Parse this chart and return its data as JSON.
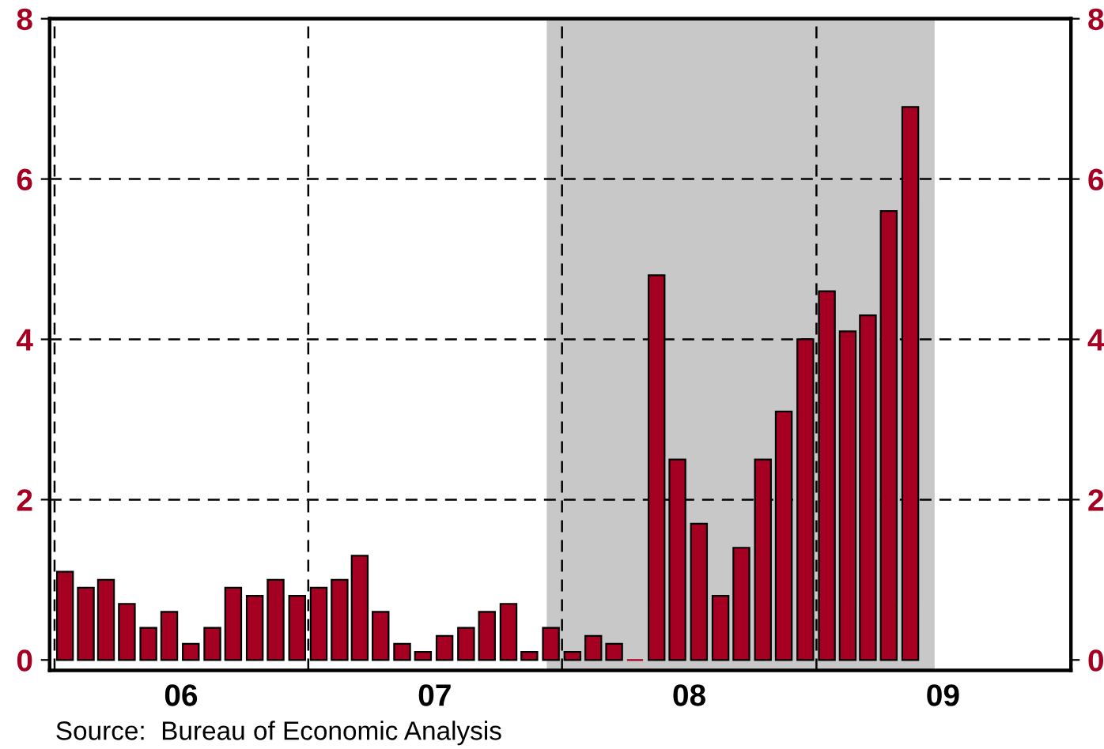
{
  "chart_data": {
    "type": "bar",
    "x": [
      "2006-01-16",
      "2006-02-15",
      "2006-03-16",
      "2006-04-15",
      "2006-05-16",
      "2006-06-15",
      "2006-07-16",
      "2006-08-16",
      "2006-09-15",
      "2006-10-16",
      "2006-11-15",
      "2006-12-16",
      "2007-01-16",
      "2007-02-15",
      "2007-03-16",
      "2007-04-15",
      "2007-05-16",
      "2007-06-15",
      "2007-07-16",
      "2007-08-16",
      "2007-09-15",
      "2007-10-16",
      "2007-11-15",
      "2007-12-16",
      "2008-01-16",
      "2008-02-15",
      "2008-03-16",
      "2008-04-15",
      "2008-05-16",
      "2008-06-15",
      "2008-07-16",
      "2008-08-16",
      "2008-09-15",
      "2008-10-16",
      "2008-11-15",
      "2008-12-16",
      "2009-01-16",
      "2009-02-15",
      "2009-03-16",
      "2009-04-15",
      "2009-05-16"
    ],
    "series": [
      {
        "color": "#a50021",
        "values": [
          1.1,
          0.9,
          1.0,
          0.7,
          0.4,
          0.6,
          0.2,
          0.4,
          0.9,
          0.8,
          1.0,
          0.8,
          0.9,
          1.0,
          1.3,
          0.6,
          0.2,
          0.1,
          0.3,
          0.4,
          0.6,
          0.7,
          0.1,
          0.4,
          0.1,
          0.3,
          0.2,
          0.0,
          4.8,
          2.5,
          1.7,
          0.8,
          1.4,
          2.5,
          3.1,
          4.0,
          4.6,
          4.1,
          4.3,
          5.6,
          6.9
        ]
      }
    ],
    "xlim": [
      "2005-12-25",
      "2010-01-02"
    ],
    "xticks": [
      {
        "value": "2006-01-01",
        "label": null
      },
      {
        "value": "2006-07-02",
        "label": "06"
      },
      {
        "value": "2007-01-01",
        "label": null
      },
      {
        "value": "2007-07-02",
        "label": "07"
      },
      {
        "value": "2008-01-01",
        "label": null
      },
      {
        "value": "2008-07-02",
        "label": "08"
      },
      {
        "value": "2009-01-01",
        "label": null
      },
      {
        "value": "2009-07-02",
        "label": "09"
      },
      {
        "value": "2010-01-01",
        "label": null
      }
    ],
    "ylim": [
      -0.13,
      8.0
    ],
    "yticks": [
      0,
      2,
      4,
      6,
      8
    ],
    "y2lim": [
      -0.13,
      8.0
    ],
    "y2ticks": [
      0,
      2,
      4,
      6,
      8
    ],
    "bands": [
      {
        "axis": "x",
        "from": "2007-12-10",
        "to": "2009-06-20",
        "label": null,
        "color": "#c8c8c8"
      }
    ],
    "grid": true,
    "annotations": [
      "Source:  Bureau of Economic Analysis"
    ]
  }
}
